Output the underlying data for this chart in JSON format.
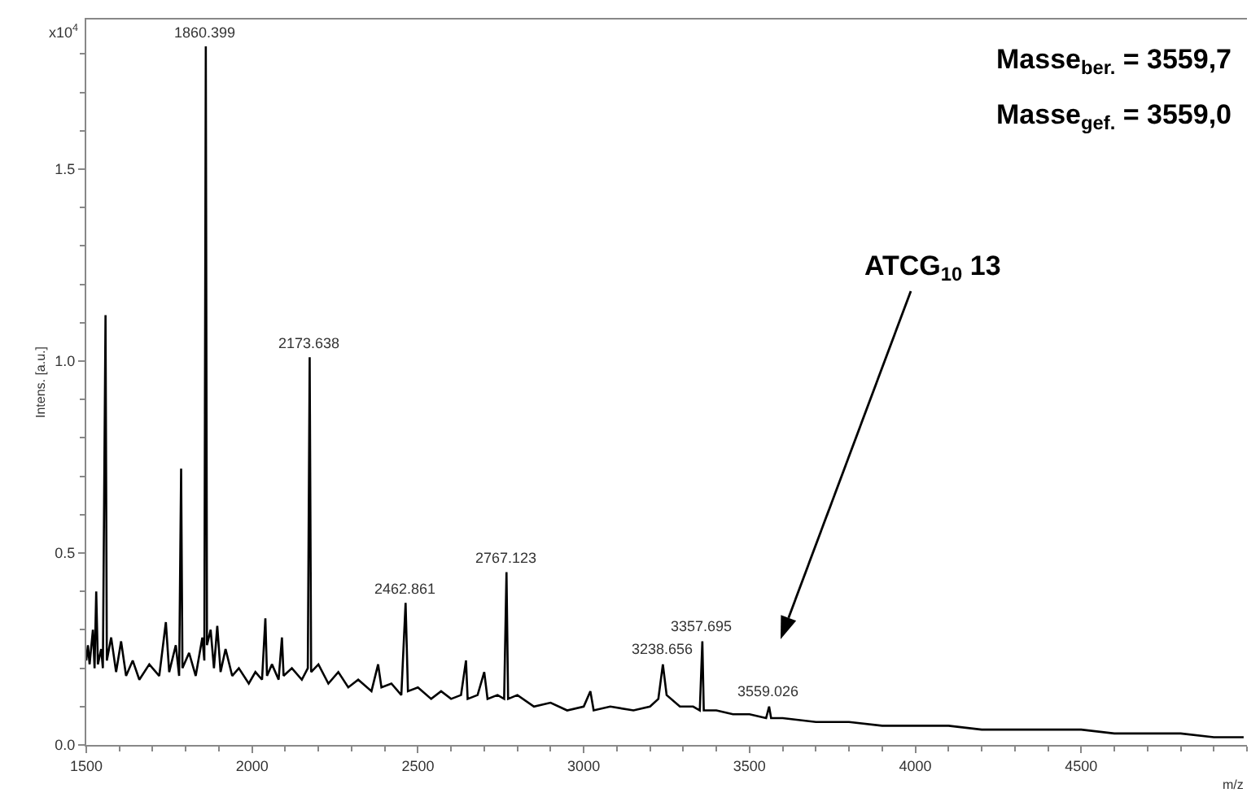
{
  "chart_data": {
    "type": "line",
    "xlabel": "m/z",
    "ylabel": "Intens. [a.u.]",
    "x": [
      1500,
      1505,
      1510,
      1520,
      1525,
      1530,
      1535,
      1545,
      1550,
      1558,
      1562,
      1575,
      1590,
      1605,
      1620,
      1640,
      1660,
      1690,
      1720,
      1740,
      1750,
      1770,
      1780,
      1786,
      1790,
      1810,
      1830,
      1850,
      1856,
      1860.399,
      1864,
      1875,
      1885,
      1895,
      1905,
      1920,
      1940,
      1960,
      1990,
      2010,
      2030,
      2040,
      2045,
      2060,
      2080,
      2090,
      2095,
      2120,
      2150,
      2168,
      2173.638,
      2178,
      2200,
      2230,
      2260,
      2290,
      2320,
      2360,
      2380,
      2390,
      2420,
      2450,
      2462.861,
      2470,
      2500,
      2540,
      2570,
      2600,
      2630,
      2645,
      2650,
      2680,
      2700,
      2710,
      2740,
      2760,
      2767.123,
      2772,
      2800,
      2850,
      2900,
      2950,
      3000,
      3020,
      3030,
      3080,
      3150,
      3200,
      3225,
      3238.656,
      3250,
      3290,
      3330,
      3350,
      3357.695,
      3362,
      3400,
      3450,
      3500,
      3550,
      3559.026,
      3565,
      3600,
      3700,
      3800,
      3900,
      4000,
      4100,
      4200,
      4300,
      4400,
      4500,
      4600,
      4700,
      4800,
      4900,
      4990
    ],
    "series": [
      {
        "color": "#000000",
        "values": [
          0.22,
          0.26,
          0.21,
          0.3,
          0.2,
          0.4,
          0.21,
          0.25,
          0.2,
          1.12,
          0.22,
          0.28,
          0.19,
          0.27,
          0.18,
          0.22,
          0.17,
          0.21,
          0.18,
          0.32,
          0.19,
          0.26,
          0.18,
          0.72,
          0.2,
          0.24,
          0.18,
          0.28,
          0.22,
          1.82,
          0.26,
          0.3,
          0.2,
          0.31,
          0.19,
          0.25,
          0.18,
          0.2,
          0.16,
          0.19,
          0.17,
          0.33,
          0.18,
          0.21,
          0.17,
          0.28,
          0.18,
          0.2,
          0.17,
          0.2,
          1.01,
          0.19,
          0.21,
          0.16,
          0.19,
          0.15,
          0.17,
          0.14,
          0.21,
          0.15,
          0.16,
          0.13,
          0.37,
          0.14,
          0.15,
          0.12,
          0.14,
          0.12,
          0.13,
          0.22,
          0.12,
          0.13,
          0.19,
          0.12,
          0.13,
          0.12,
          0.45,
          0.12,
          0.13,
          0.1,
          0.11,
          0.09,
          0.1,
          0.14,
          0.09,
          0.1,
          0.09,
          0.1,
          0.12,
          0.21,
          0.13,
          0.1,
          0.1,
          0.09,
          0.27,
          0.09,
          0.09,
          0.08,
          0.08,
          0.07,
          0.1,
          0.07,
          0.07,
          0.06,
          0.06,
          0.05,
          0.05,
          0.05,
          0.04,
          0.04,
          0.04,
          0.04,
          0.03,
          0.03,
          0.03,
          0.02,
          0.02
        ]
      }
    ],
    "xlim": [
      1500,
      5000
    ],
    "xticks": [
      1500,
      2000,
      2500,
      3000,
      3500,
      4000,
      4500
    ],
    "ylim": [
      0,
      1.89
    ],
    "yticks": [
      {
        "value": 0,
        "label": "0.0"
      },
      0.5,
      {
        "value": 1,
        "label": "1.0"
      },
      1.5
    ],
    "grid": false,
    "marker": "none",
    "line_style": "solid",
    "annotations": [
      "x10$^{4}$",
      "Masse$_{ber.}$ = 3559,7",
      "Masse$_{gef.}$ = 3559,0",
      {
        "text": "1860.399",
        "x": 1860.399,
        "y": 1.82
      },
      {
        "text": "2173.638",
        "x": 2173.638,
        "y": 1.01
      },
      {
        "text": "2462.861",
        "x": 2462.861,
        "y": 0.37
      },
      {
        "text": "2767.123",
        "x": 2767.123,
        "y": 0.45
      },
      {
        "text": "3238.656",
        "x": 3238.656,
        "y": 0.21
      },
      {
        "text": "3357.695",
        "x": 3357.695,
        "y": 0.27
      },
      {
        "text": "3559.026",
        "x": 3559.026,
        "y": 0.1
      },
      "ATCG$_{10}$ 13"
    ]
  }
}
